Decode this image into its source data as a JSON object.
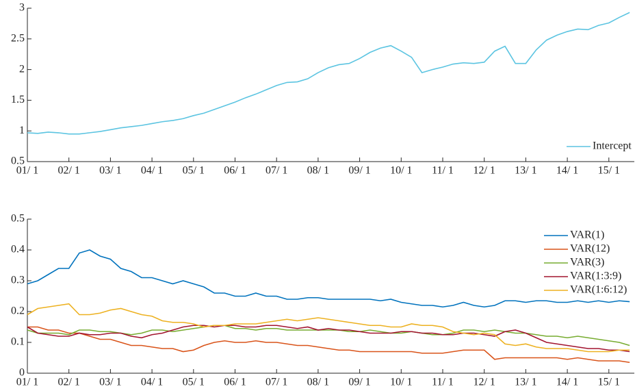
{
  "chart_data": [
    {
      "type": "line",
      "categories": [
        "01/ 1",
        null,
        null,
        null,
        "02/ 1",
        null,
        null,
        null,
        "03/ 1",
        null,
        null,
        null,
        "04/ 1",
        null,
        null,
        null,
        "05/ 1",
        null,
        null,
        null,
        "06/ 1",
        null,
        null,
        null,
        "07/ 1",
        null,
        null,
        null,
        "08/ 1",
        null,
        null,
        null,
        "09/ 1",
        null,
        null,
        null,
        "10/ 1",
        null,
        null,
        null,
        "11/ 1",
        null,
        null,
        null,
        "12/ 1",
        null,
        null,
        null,
        "13/ 1",
        null,
        null,
        null,
        "14/ 1",
        null,
        null,
        null,
        "15/ 1",
        null,
        null
      ],
      "series": [
        {
          "name": "Intercept",
          "color": "#5bc4e1",
          "values": [
            0.97,
            0.96,
            0.98,
            0.97,
            0.95,
            0.95,
            0.97,
            0.99,
            1.02,
            1.05,
            1.07,
            1.09,
            1.12,
            1.15,
            1.17,
            1.2,
            1.25,
            1.29,
            1.35,
            1.41,
            1.47,
            1.54,
            1.6,
            1.67,
            1.74,
            1.79,
            1.8,
            1.85,
            1.95,
            2.03,
            2.08,
            2.1,
            2.18,
            2.28,
            2.35,
            2.39,
            2.3,
            2.2,
            1.95,
            2.0,
            2.04,
            2.09,
            2.11,
            2.1,
            2.12,
            2.3,
            2.38,
            2.1,
            2.1,
            2.32,
            2.48,
            2.56,
            2.62,
            2.66,
            2.65,
            2.72,
            2.76,
            2.85,
            2.93
          ]
        }
      ],
      "ylim": [
        0.5,
        3
      ],
      "yticks": [
        0.5,
        1,
        1.5,
        2,
        2.5,
        3
      ],
      "legend": "lower right"
    },
    {
      "type": "line",
      "categories": [
        "01/ 1",
        null,
        null,
        null,
        "02/ 1",
        null,
        null,
        null,
        "03/ 1",
        null,
        null,
        null,
        "04/ 1",
        null,
        null,
        null,
        "05/ 1",
        null,
        null,
        null,
        "06/ 1",
        null,
        null,
        null,
        "07/ 1",
        null,
        null,
        null,
        "08/ 1",
        null,
        null,
        null,
        "09/ 1",
        null,
        null,
        null,
        "10/ 1",
        null,
        null,
        null,
        "11/ 1",
        null,
        null,
        null,
        "12/ 1",
        null,
        null,
        null,
        "13/ 1",
        null,
        null,
        null,
        "14/ 1",
        null,
        null,
        null,
        "15/ 1",
        null,
        null
      ],
      "series": [
        {
          "name": "VAR(1)",
          "color": "#0072bd",
          "values": [
            0.29,
            0.3,
            0.32,
            0.34,
            0.34,
            0.39,
            0.4,
            0.38,
            0.37,
            0.34,
            0.33,
            0.31,
            0.31,
            0.3,
            0.29,
            0.3,
            0.29,
            0.28,
            0.26,
            0.26,
            0.25,
            0.25,
            0.26,
            0.25,
            0.25,
            0.24,
            0.24,
            0.245,
            0.245,
            0.24,
            0.24,
            0.24,
            0.24,
            0.24,
            0.235,
            0.24,
            0.23,
            0.225,
            0.22,
            0.22,
            0.215,
            0.22,
            0.23,
            0.22,
            0.215,
            0.22,
            0.235,
            0.235,
            0.23,
            0.235,
            0.235,
            0.23,
            0.23,
            0.235,
            0.23,
            0.235,
            0.23,
            0.235,
            0.232
          ]
        },
        {
          "name": "VAR(12)",
          "color": "#d95319",
          "values": [
            0.15,
            0.15,
            0.14,
            0.14,
            0.13,
            0.13,
            0.12,
            0.11,
            0.11,
            0.1,
            0.09,
            0.09,
            0.085,
            0.08,
            0.08,
            0.07,
            0.075,
            0.09,
            0.1,
            0.105,
            0.1,
            0.1,
            0.105,
            0.1,
            0.1,
            0.095,
            0.09,
            0.09,
            0.085,
            0.08,
            0.075,
            0.075,
            0.07,
            0.07,
            0.07,
            0.07,
            0.07,
            0.07,
            0.065,
            0.065,
            0.065,
            0.07,
            0.075,
            0.075,
            0.075,
            0.045,
            0.05,
            0.05,
            0.05,
            0.05,
            0.05,
            0.05,
            0.045,
            0.05,
            0.045,
            0.04,
            0.04,
            0.04,
            0.035
          ]
        },
        {
          "name": "VAR(3)",
          "color": "#77ac30",
          "values": [
            0.14,
            0.13,
            0.13,
            0.13,
            0.125,
            0.14,
            0.14,
            0.135,
            0.135,
            0.13,
            0.125,
            0.13,
            0.14,
            0.14,
            0.135,
            0.14,
            0.145,
            0.15,
            0.155,
            0.155,
            0.145,
            0.145,
            0.14,
            0.145,
            0.145,
            0.14,
            0.14,
            0.14,
            0.14,
            0.14,
            0.14,
            0.135,
            0.135,
            0.14,
            0.135,
            0.13,
            0.13,
            0.135,
            0.13,
            0.125,
            0.125,
            0.13,
            0.14,
            0.14,
            0.135,
            0.14,
            0.135,
            0.13,
            0.13,
            0.125,
            0.12,
            0.12,
            0.115,
            0.12,
            0.115,
            0.11,
            0.105,
            0.1,
            0.09
          ]
        },
        {
          "name": "VAR(1:3:9)",
          "color": "#a2142f",
          "values": [
            0.15,
            0.13,
            0.125,
            0.12,
            0.12,
            0.13,
            0.125,
            0.125,
            0.13,
            0.13,
            0.12,
            0.115,
            0.125,
            0.13,
            0.14,
            0.15,
            0.155,
            0.155,
            0.15,
            0.155,
            0.155,
            0.15,
            0.15,
            0.155,
            0.155,
            0.15,
            0.145,
            0.15,
            0.14,
            0.145,
            0.14,
            0.14,
            0.135,
            0.13,
            0.13,
            0.13,
            0.135,
            0.135,
            0.13,
            0.13,
            0.125,
            0.125,
            0.13,
            0.13,
            0.125,
            0.12,
            0.135,
            0.14,
            0.13,
            0.115,
            0.1,
            0.095,
            0.09,
            0.085,
            0.08,
            0.08,
            0.075,
            0.075,
            0.07
          ]
        },
        {
          "name": "VAR(1:6:12)",
          "color": "#edb120",
          "values": [
            0.19,
            0.21,
            0.215,
            0.22,
            0.225,
            0.19,
            0.19,
            0.195,
            0.205,
            0.21,
            0.2,
            0.19,
            0.185,
            0.17,
            0.165,
            0.165,
            0.16,
            0.15,
            0.155,
            0.155,
            0.16,
            0.16,
            0.16,
            0.165,
            0.17,
            0.175,
            0.17,
            0.175,
            0.18,
            0.175,
            0.17,
            0.165,
            0.16,
            0.155,
            0.155,
            0.15,
            0.15,
            0.16,
            0.155,
            0.155,
            0.15,
            0.135,
            0.13,
            0.125,
            0.13,
            0.125,
            0.095,
            0.09,
            0.095,
            0.085,
            0.08,
            0.08,
            0.08,
            0.075,
            0.07,
            0.07,
            0.07,
            0.075,
            0.075
          ]
        }
      ],
      "ylim": [
        0,
        0.5
      ],
      "yticks": [
        0,
        0.1,
        0.2,
        0.3,
        0.4,
        0.5
      ],
      "legend": "upper right"
    }
  ]
}
